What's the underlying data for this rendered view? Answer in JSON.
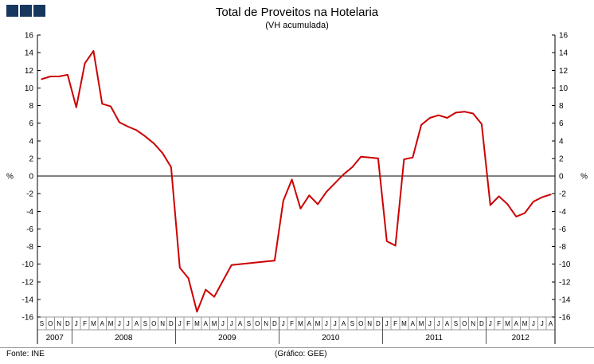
{
  "logo": {
    "color": "#17375e",
    "square_count": 3
  },
  "footer": {
    "source": "Fonte:  INE",
    "credit": "(Gráfico:  GEE)"
  },
  "chart_data": {
    "type": "line",
    "title": "Total de Proveitos na Hotelaria",
    "subtitle": "(VH acumulada)",
    "line_color": "#cc0000",
    "ylabel_left": "%",
    "ylabel_right": "%",
    "ylim": [
      -16,
      16
    ],
    "ytick_step": 2,
    "grid": false,
    "legend": false,
    "months": [
      "S",
      "O",
      "N",
      "D",
      "J",
      "F",
      "M",
      "A",
      "M",
      "J",
      "J",
      "A",
      "S",
      "O",
      "N",
      "D",
      "J",
      "F",
      "M",
      "A",
      "M",
      "J",
      "J",
      "A",
      "S",
      "O",
      "N",
      "D",
      "J",
      "F",
      "M",
      "A",
      "M",
      "J",
      "J",
      "A",
      "S",
      "O",
      "N",
      "D",
      "J",
      "F",
      "M",
      "A",
      "M",
      "J",
      "J",
      "A",
      "S",
      "O",
      "N",
      "D",
      "J",
      "F",
      "M",
      "A",
      "M",
      "J",
      "J",
      "A"
    ],
    "years": [
      {
        "label": "2007",
        "months": 4
      },
      {
        "label": "2008",
        "months": 12
      },
      {
        "label": "2009",
        "months": 12
      },
      {
        "label": "2010",
        "months": 12
      },
      {
        "label": "2011",
        "months": 12
      },
      {
        "label": "2012",
        "months": 8
      }
    ],
    "values": [
      11.0,
      11.3,
      11.3,
      11.5,
      7.8,
      12.8,
      14.2,
      8.2,
      7.9,
      6.1,
      5.6,
      5.2,
      4.5,
      3.7,
      2.6,
      1.0,
      -10.4,
      -11.6,
      -15.4,
      -12.9,
      -13.7,
      -11.9,
      -10.1,
      -10.0,
      -9.9,
      -9.8,
      -9.7,
      -9.6,
      -2.8,
      -0.4,
      -3.7,
      -2.2,
      -3.2,
      -1.8,
      -0.8,
      0.2,
      1.0,
      2.2,
      2.1,
      2.0,
      -7.4,
      -7.9,
      1.9,
      2.1,
      5.8,
      6.6,
      6.9,
      6.6,
      7.2,
      7.3,
      7.1,
      5.9,
      -3.3,
      -2.3,
      -3.2,
      -4.6,
      -4.2,
      -2.9,
      -2.4,
      -2.1
    ]
  }
}
